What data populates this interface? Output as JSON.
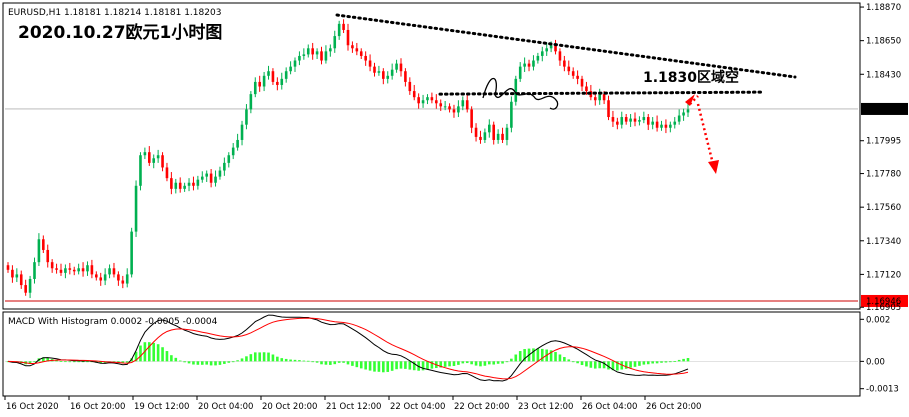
{
  "symbol_header": "EURUSD,H1  1.18181 1.18214 1.18181 1.18203",
  "title": "2020.10.27欧元1小时图",
  "annotation": "1.1830区域空",
  "macd_header": "MACD With Histogram 0.0002 -0.0005 -0.0004",
  "colors": {
    "bull": "#00b050",
    "bear": "#ff0000",
    "grid": "#c8c8c8",
    "macd_line": "#000000",
    "signal_line": "#ff0000",
    "histogram": "#33ff33",
    "support": "#cc0000"
  },
  "chart_data": [
    {
      "type": "candlestick",
      "title": "2020.10.27欧元1小时图",
      "y_ticks": [
        "1.18870",
        "1.18650",
        "1.18430",
        "1.18203",
        "1.17995",
        "1.17780",
        "1.17560",
        "1.17340",
        "1.17120",
        "1.16946",
        "1.16905"
      ],
      "current_price": "1.18203",
      "support_price": "1.16946",
      "ylim": [
        1.169,
        1.1889
      ],
      "x_ticks": [
        "16 Oct 2020",
        "16 Oct 20:00",
        "19 Oct 12:00",
        "20 Oct 04:00",
        "20 Oct 20:00",
        "21 Oct 12:00",
        "22 Oct 04:00",
        "22 Oct 20:00",
        "23 Oct 12:00",
        "26 Oct 04:00",
        "26 Oct 20:00"
      ],
      "trendline_upper": [
        [
          1.1878,
          1.1847
        ]
      ],
      "resistance_line": 1.183,
      "closes": [
        1.1715,
        1.171,
        1.1712,
        1.1705,
        1.17,
        1.1709,
        1.172,
        1.1735,
        1.1728,
        1.172,
        1.1716,
        1.1715,
        1.1713,
        1.1716,
        1.1715,
        1.1714,
        1.1716,
        1.1714,
        1.1718,
        1.1712,
        1.171,
        1.1708,
        1.1712,
        1.1716,
        1.1712,
        1.1708,
        1.1706,
        1.1712,
        1.174,
        1.177,
        1.179,
        1.1792,
        1.1785,
        1.1788,
        1.179,
        1.1782,
        1.1775,
        1.1768,
        1.1772,
        1.1768,
        1.177,
        1.1772,
        1.177,
        1.1774,
        1.1776,
        1.1778,
        1.1772,
        1.1776,
        1.178,
        1.1785,
        1.179,
        1.1795,
        1.18,
        1.181,
        1.182,
        1.183,
        1.1838,
        1.1835,
        1.1842,
        1.1845,
        1.1838,
        1.1836,
        1.184,
        1.1845,
        1.1848,
        1.1852,
        1.1855,
        1.1856,
        1.186,
        1.1856,
        1.1858,
        1.1852,
        1.1858,
        1.186,
        1.1868,
        1.1876,
        1.1872,
        1.1862,
        1.186,
        1.1858,
        1.1855,
        1.1852,
        1.1848,
        1.1844,
        1.1845,
        1.184,
        1.1842,
        1.1846,
        1.185,
        1.1845,
        1.1838,
        1.1832,
        1.1828,
        1.1824,
        1.1826,
        1.1828,
        1.1826,
        1.1824,
        1.1822,
        1.1822,
        1.182,
        1.1818,
        1.1822,
        1.1826,
        1.182,
        1.1808,
        1.1802,
        1.18,
        1.1805,
        1.181,
        1.18,
        1.1804,
        1.18,
        1.1808,
        1.1825,
        1.184,
        1.1848,
        1.185,
        1.1848,
        1.1852,
        1.1855,
        1.1858,
        1.186,
        1.1862,
        1.1858,
        1.1852,
        1.1848,
        1.1845,
        1.1842,
        1.184,
        1.1835,
        1.1832,
        1.1828,
        1.1826,
        1.183,
        1.1826,
        1.1815,
        1.1812,
        1.181,
        1.1815,
        1.1812,
        1.1814,
        1.1812,
        1.1813,
        1.1815,
        1.181,
        1.1812,
        1.1808,
        1.181,
        1.1808,
        1.181,
        1.1812,
        1.1816,
        1.1818,
        1.182
      ]
    },
    {
      "type": "macd",
      "title": "MACD With Histogram 0.0002 -0.0005 -0.0004",
      "y_ticks": [
        "0.002",
        "0.00",
        "-0.0013"
      ],
      "ylim": [
        -0.0016,
        0.0023
      ]
    }
  ]
}
